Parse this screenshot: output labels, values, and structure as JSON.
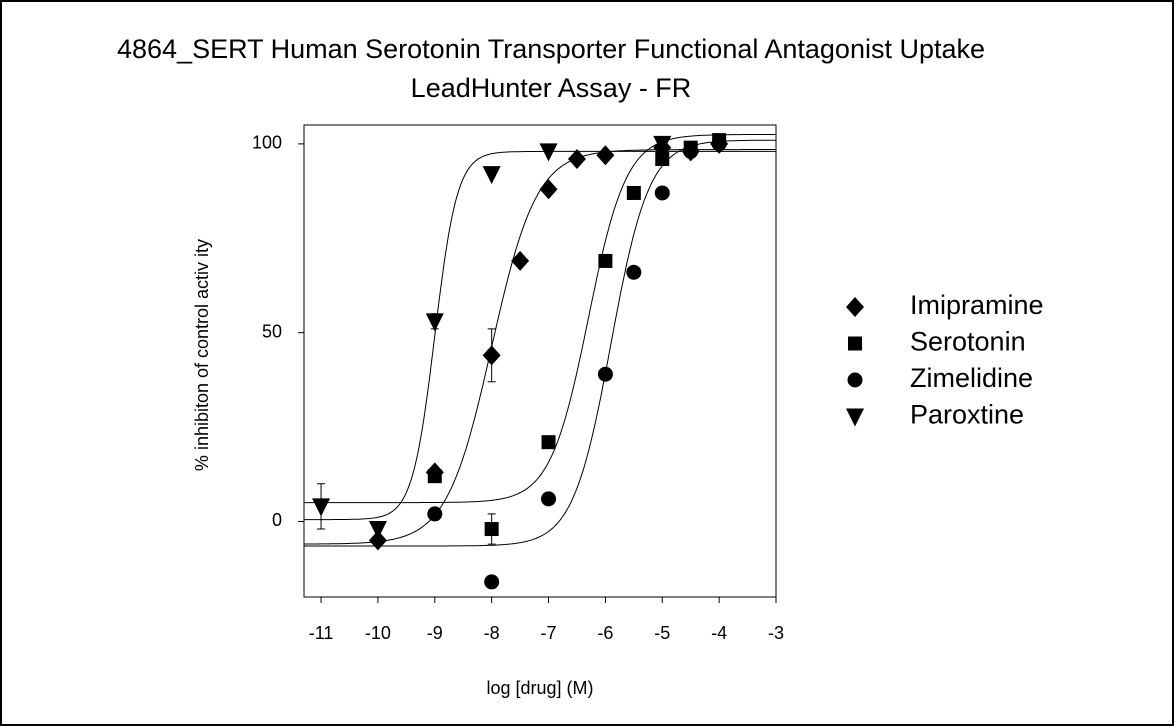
{
  "chart_data": {
    "type": "scatter",
    "title": [
      "4864_SERT Human Serotonin Transporter Functional Antagonist Uptake",
      "LeadHunter Assay - FR"
    ],
    "xlabel": "log [drug] (M)",
    "ylabel": "% inhibiton of control activ ity",
    "xlim": [
      -11.3,
      -3
    ],
    "xticks": [
      -11,
      -10,
      -9,
      -8,
      -7,
      -6,
      -5,
      -4,
      -3
    ],
    "ylim": [
      -20,
      105
    ],
    "yticks": [
      0,
      50,
      100
    ],
    "legend": "right",
    "series": [
      {
        "name": "Imipramine",
        "color": "#000000",
        "marker": "diamond",
        "x": [
          -10,
          -9,
          -8,
          -7.5,
          -7,
          -6.5,
          -6,
          -5,
          -4.5,
          -4
        ],
        "values": [
          -5,
          13,
          44,
          69,
          88,
          96,
          97,
          99,
          98,
          100
        ],
        "errors": [
          null,
          null,
          7,
          null,
          null,
          null,
          null,
          null,
          null,
          null
        ],
        "fit": {
          "bottom": -6,
          "top": 98.5,
          "logec50": -8.0,
          "hill": 1.1
        }
      },
      {
        "name": "Serotonin",
        "color": "#000000",
        "marker": "square",
        "x": [
          -9,
          -8,
          -7,
          -6,
          -5.5,
          -5,
          -4.5,
          -4
        ],
        "values": [
          12,
          -2,
          21,
          69,
          87,
          96,
          99,
          101
        ],
        "errors": [
          null,
          4,
          null,
          null,
          null,
          null,
          null,
          null
        ],
        "fit": {
          "bottom": 5,
          "top": 102.5,
          "logec50": -6.3,
          "hill": 1.3
        }
      },
      {
        "name": "Zimelidine",
        "color": "#000000",
        "marker": "circle",
        "x": [
          -9,
          -8,
          -7,
          -6,
          -5.5,
          -5,
          -4.5,
          -4
        ],
        "values": [
          2,
          -16,
          6,
          39,
          66,
          87,
          98,
          100
        ],
        "errors": [
          null,
          null,
          null,
          null,
          null,
          null,
          null,
          null
        ],
        "fit": {
          "bottom": -6.5,
          "top": 101,
          "logec50": -5.9,
          "hill": 1.3
        }
      },
      {
        "name": "Paroxtine",
        "color": "#000000",
        "marker": "triangle-down",
        "x": [
          -11,
          -10,
          -9,
          -8,
          -7,
          -5
        ],
        "values": [
          4,
          -2,
          53,
          92,
          98,
          100
        ],
        "errors": [
          6,
          null,
          2,
          null,
          null,
          null
        ],
        "fit": {
          "bottom": 0.5,
          "top": 98,
          "logec50": -9.0,
          "hill": 2.2
        }
      }
    ]
  }
}
